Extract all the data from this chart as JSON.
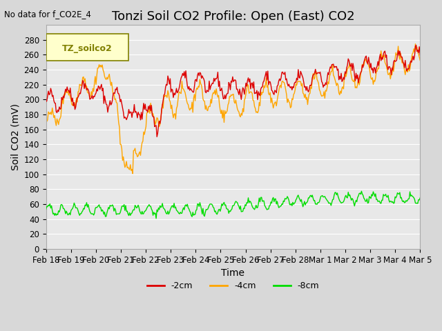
{
  "title": "Tonzi Soil CO2 Profile: Open (East) CO2",
  "subtitle": "No data for f_CO2E_4",
  "xlabel": "Time",
  "ylabel": "Soil CO2 (mV)",
  "legend_box_label": "TZ_soilco2",
  "ylim": [
    0,
    300
  ],
  "yticks": [
    0,
    20,
    40,
    60,
    80,
    100,
    120,
    140,
    160,
    180,
    200,
    220,
    240,
    260,
    280
  ],
  "xtick_positions": [
    0,
    1,
    2,
    3,
    4,
    5,
    6,
    7,
    8,
    9,
    10,
    11,
    12,
    13,
    14,
    15
  ],
  "xtick_labels": [
    "Feb 18",
    "Feb 19",
    "Feb 20",
    "Feb 21",
    "Feb 22",
    "Feb 23",
    "Feb 24",
    "Feb 25",
    "Feb 26",
    "Feb 27",
    "Feb 28",
    "Mar 1",
    "Mar 2",
    "Mar 3",
    "Mar 4",
    "Mar 5"
  ],
  "line_colors": {
    "2cm": "#dd0000",
    "4cm": "#ffa500",
    "8cm": "#00dd00"
  },
  "line_labels": {
    "2cm": "-2cm",
    "4cm": "-4cm",
    "8cm": "-8cm"
  },
  "bg_color": "#d8d8d8",
  "plot_bg_color": "#e8e8e8",
  "legend_box_color": "#ffffcc",
  "grid_color": "#ffffff",
  "title_fontsize": 13,
  "axis_fontsize": 10,
  "tick_fontsize": 8.5
}
